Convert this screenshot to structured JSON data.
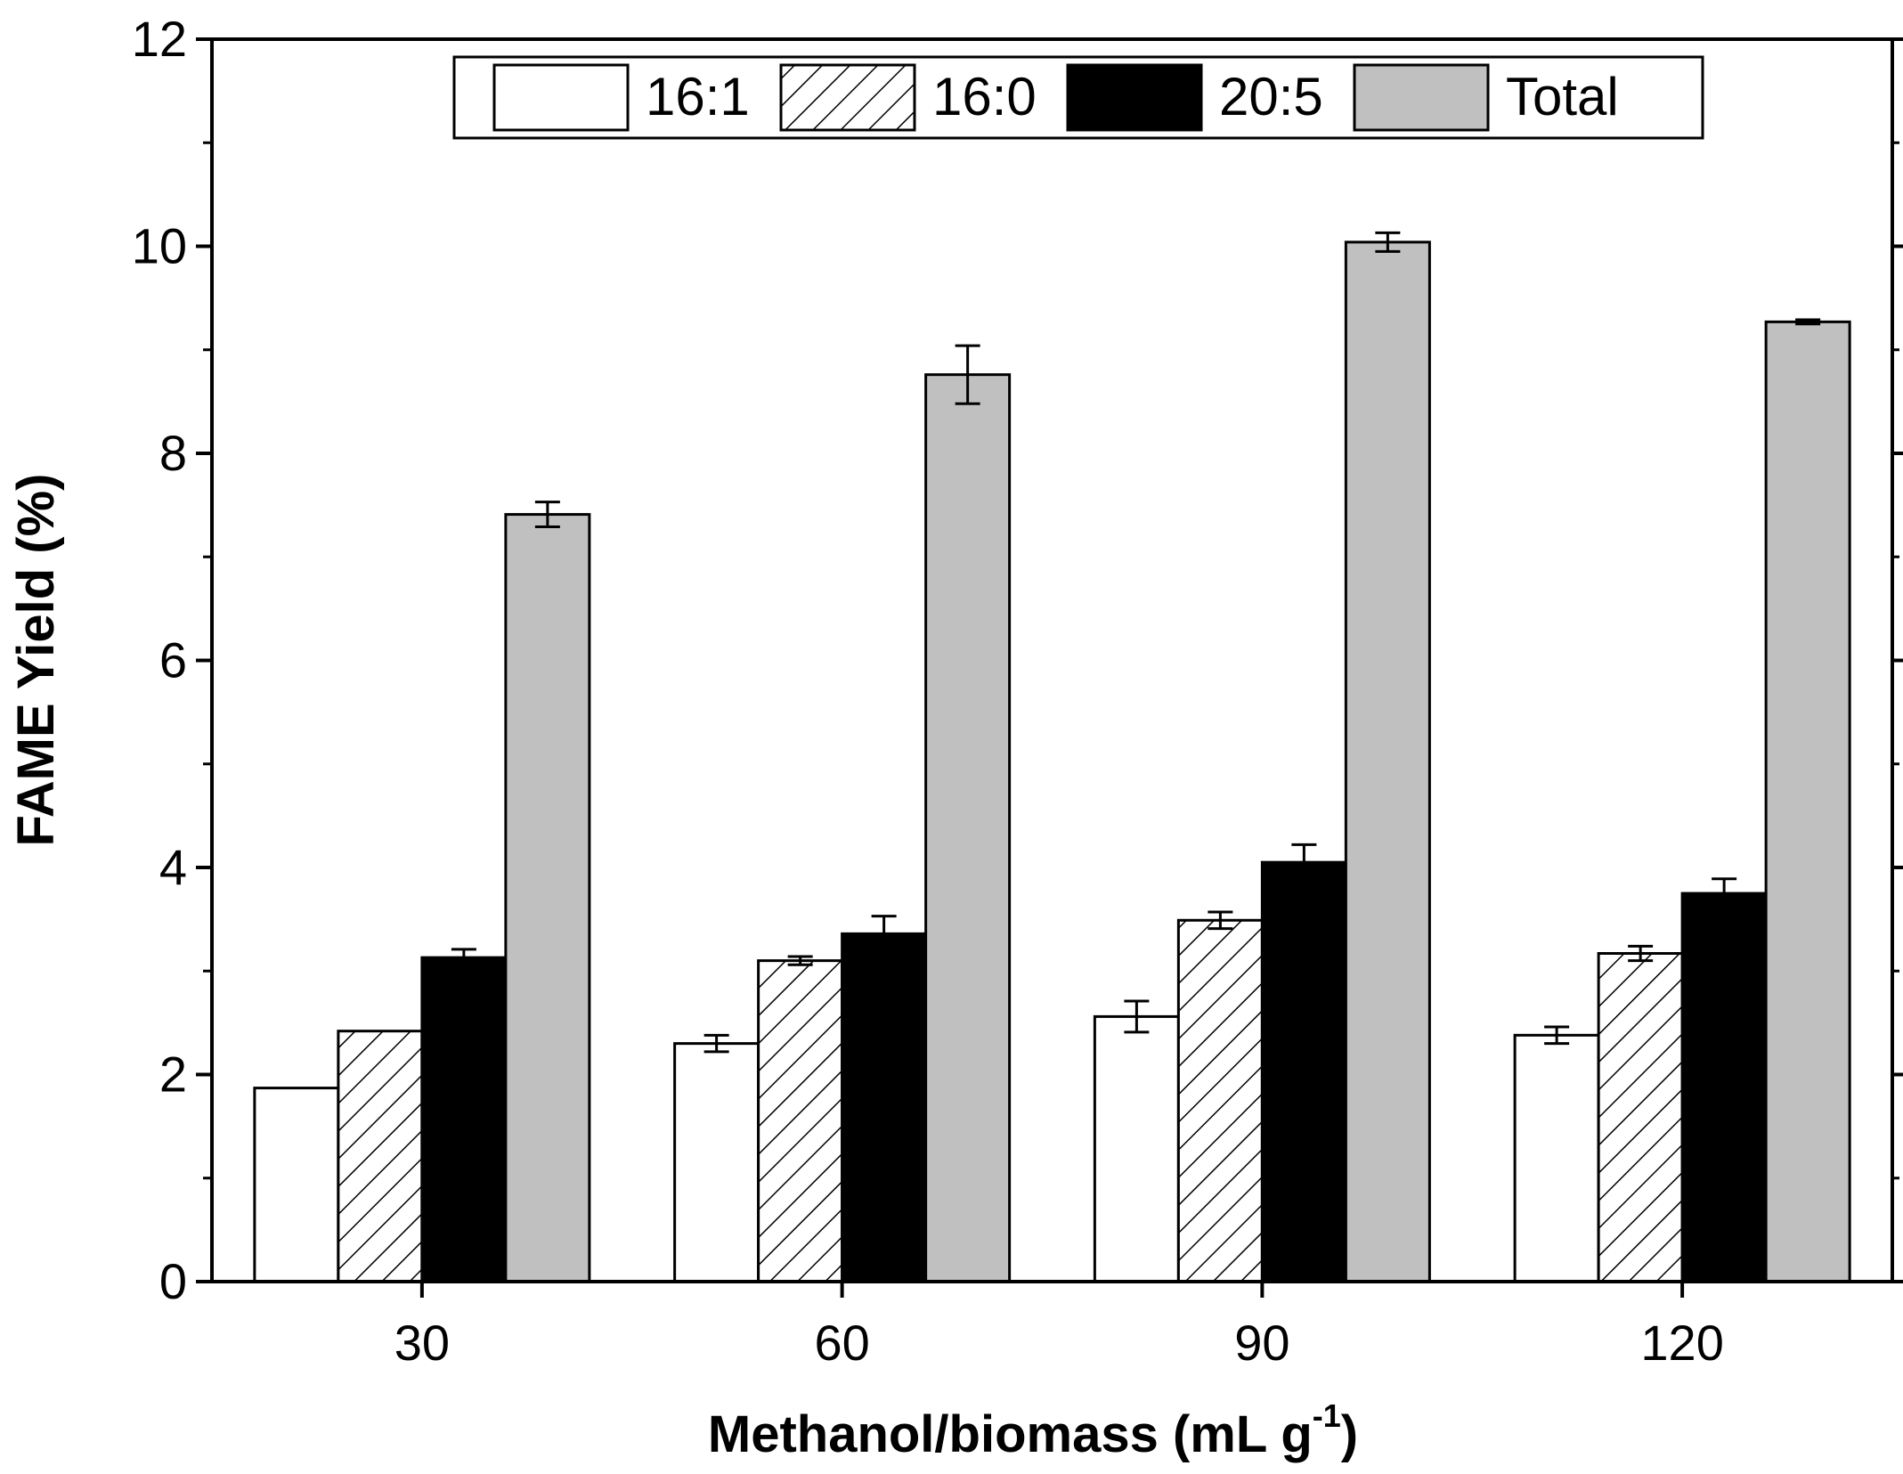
{
  "chart_data": {
    "type": "bar",
    "title": "",
    "xlabel": "Methanol/biomass (mL g",
    "xlabel_sup": "-1",
    "xlabel_close": ")",
    "ylabel": "FAME Yield (%)",
    "ylim": [
      0,
      12
    ],
    "yticks": [
      0,
      2,
      4,
      6,
      8,
      10,
      12
    ],
    "categories": [
      "30",
      "60",
      "90",
      "120"
    ],
    "legend_position": "top-center",
    "series": [
      {
        "name": "16:1",
        "fill": "white",
        "values": [
          1.87,
          2.3,
          2.56,
          2.38
        ],
        "errors": [
          0.0,
          0.08,
          0.15,
          0.08
        ]
      },
      {
        "name": "16:0",
        "fill": "hatch",
        "values": [
          2.42,
          3.1,
          3.49,
          3.17
        ],
        "errors": [
          0.0,
          0.04,
          0.08,
          0.07
        ]
      },
      {
        "name": "20:5",
        "fill": "black",
        "values": [
          3.13,
          3.36,
          4.05,
          3.75
        ],
        "errors": [
          0.08,
          0.17,
          0.17,
          0.14
        ]
      },
      {
        "name": "Total",
        "fill": "gray",
        "values": [
          7.41,
          8.76,
          10.04,
          9.27
        ],
        "errors": [
          0.12,
          0.28,
          0.09,
          0.02
        ]
      }
    ],
    "colors": {
      "white": "#ffffff",
      "black": "#000000",
      "gray": "#c0c0c0",
      "stroke": "#000000"
    }
  }
}
